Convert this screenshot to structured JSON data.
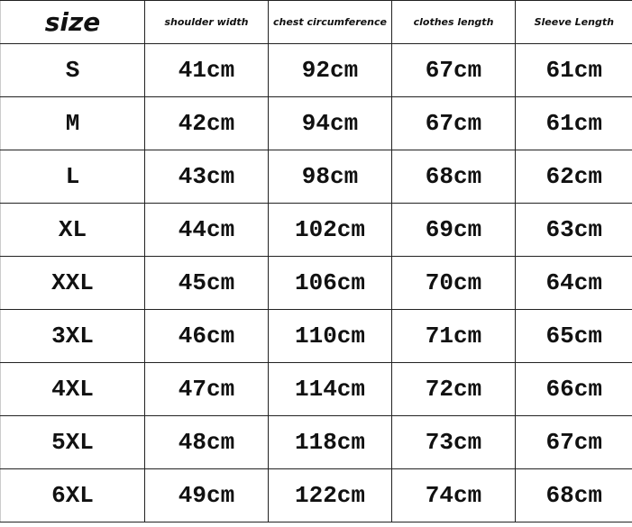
{
  "table": {
    "header": [
      "size",
      "shoulder width",
      "chest circumference",
      "clothes length",
      "Sleeve Length"
    ],
    "rows": [
      [
        "S",
        "41cm",
        "92cm",
        "67cm",
        "61cm"
      ],
      [
        "M",
        "42cm",
        "94cm",
        "67cm",
        "61cm"
      ],
      [
        "L",
        "43cm",
        "98cm",
        "68cm",
        "62cm"
      ],
      [
        "XL",
        "44cm",
        "102cm",
        "69cm",
        "63cm"
      ],
      [
        "XXL",
        "45cm",
        "106cm",
        "70cm",
        "64cm"
      ],
      [
        "3XL",
        "46cm",
        "110cm",
        "71cm",
        "65cm"
      ],
      [
        "4XL",
        "47cm",
        "114cm",
        "72cm",
        "66cm"
      ],
      [
        "5XL",
        "48cm",
        "118cm",
        "73cm",
        "67cm"
      ],
      [
        "6XL",
        "49cm",
        "122cm",
        "74cm",
        "68cm"
      ]
    ]
  }
}
